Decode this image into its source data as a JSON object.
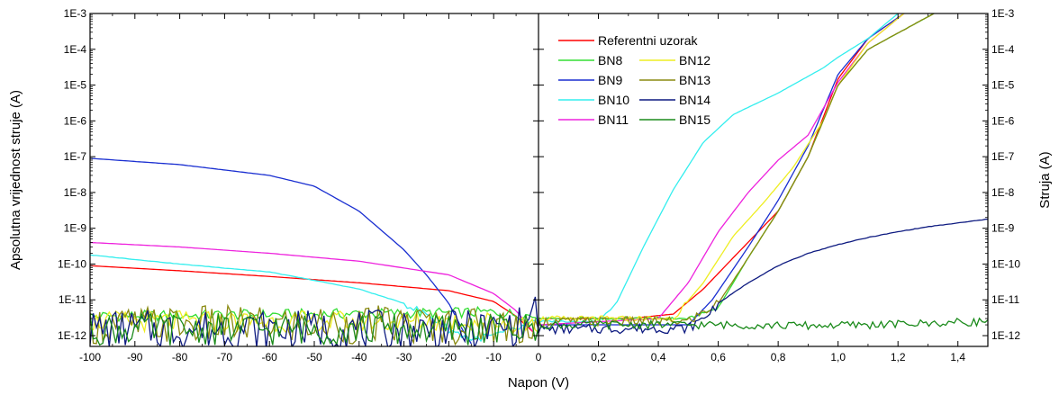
{
  "chart_data": {
    "type": "line",
    "ylabel_left": "Apsolutna vrijednost struje (A)",
    "ylabel_right": "Struja (A)",
    "xlabel": "Napon (V)",
    "y_scale": "log",
    "ylim": [
      5e-13,
      0.001
    ],
    "y_ticks": [
      "1E-12",
      "1E-11",
      "1E-10",
      "1E-9",
      "1E-8",
      "1E-7",
      "1E-6",
      "1E-5",
      "1E-4",
      "1E-3"
    ],
    "left_panel": {
      "xlim": [
        -100,
        0
      ],
      "x_ticks": [
        "-100",
        "-90",
        "-80",
        "-70",
        "-60",
        "-50",
        "-40",
        "-30",
        "-20",
        "-10",
        "0"
      ]
    },
    "right_panel": {
      "xlim": [
        0,
        1.5
      ],
      "x_ticks": [
        "0",
        "0,2",
        "0,4",
        "0,6",
        "0,8",
        "1,0",
        "1,2",
        "1,4"
      ]
    },
    "legend_position": "top-left of right panel",
    "series": [
      {
        "name": "Referentni uzorak",
        "color": "#ff0000",
        "left": [
          [
            -100,
            9e-11
          ],
          [
            -80,
            6.5e-11
          ],
          [
            -60,
            4.5e-11
          ],
          [
            -40,
            3e-11
          ],
          [
            -20,
            1.8e-11
          ],
          [
            -10,
            9e-12
          ],
          [
            -5,
            3.5e-12
          ],
          [
            -1,
            1.2e-12
          ]
        ],
        "right": [
          [
            0,
            3e-12
          ],
          [
            0.3,
            3e-12
          ],
          [
            0.45,
            4e-12
          ],
          [
            0.55,
            2e-11
          ],
          [
            0.65,
            1.5e-10
          ],
          [
            0.8,
            3e-09
          ],
          [
            0.9,
            1e-07
          ],
          [
            1.0,
            1.5e-05
          ],
          [
            1.1,
            0.0002
          ],
          [
            1.22,
            0.001
          ]
        ]
      },
      {
        "name": "BN8",
        "color": "#33dd33",
        "noise": 0.15,
        "left": [
          [
            -100,
            3.5e-12
          ],
          [
            -50,
            4e-12
          ],
          [
            -10,
            4.5e-12
          ],
          [
            0,
            3.5e-12
          ]
        ],
        "right": [
          [
            0,
            3e-12
          ],
          [
            0.5,
            3e-12
          ],
          [
            0.6,
            6e-12
          ],
          [
            0.7,
            1.5e-10
          ],
          [
            0.8,
            3e-09
          ],
          [
            0.9,
            1e-07
          ],
          [
            1.0,
            1e-05
          ],
          [
            1.1,
            0.0001
          ],
          [
            1.32,
            0.001
          ]
        ]
      },
      {
        "name": "BN9",
        "color": "#1a2fd1",
        "left": [
          [
            -100,
            9e-08
          ],
          [
            -80,
            6e-08
          ],
          [
            -60,
            3e-08
          ],
          [
            -50,
            1.5e-08
          ],
          [
            -40,
            3e-09
          ],
          [
            -30,
            2.5e-10
          ],
          [
            -25,
            5e-11
          ],
          [
            -20,
            8e-12
          ],
          [
            -17,
            1.5e-12
          ],
          [
            -15,
            6e-13
          ]
        ],
        "right": [
          [
            0,
            2e-12
          ],
          [
            0.5,
            2e-12
          ],
          [
            0.58,
            1e-11
          ],
          [
            0.7,
            3e-10
          ],
          [
            0.8,
            6e-09
          ],
          [
            0.9,
            2e-07
          ],
          [
            1.0,
            2e-05
          ],
          [
            1.1,
            0.0002
          ],
          [
            1.22,
            0.001
          ]
        ]
      },
      {
        "name": "BN10",
        "color": "#33eeee",
        "noise": 0.1,
        "left": [
          [
            -100,
            1.8e-10
          ],
          [
            -80,
            1e-10
          ],
          [
            -60,
            6e-11
          ],
          [
            -50,
            3.5e-11
          ],
          [
            -40,
            2e-11
          ],
          [
            -30,
            8e-12
          ],
          [
            -25,
            4e-12
          ],
          [
            -20,
            1.5e-12
          ],
          [
            -15,
            8e-13
          ],
          [
            -10,
            1e-12
          ],
          [
            -5,
            1.5e-12
          ],
          [
            0,
            2.5e-12
          ]
        ],
        "right": [
          [
            0,
            2.5e-12
          ],
          [
            0.2,
            2.5e-12
          ],
          [
            0.26,
            8e-12
          ],
          [
            0.35,
            3e-10
          ],
          [
            0.45,
            1.2e-08
          ],
          [
            0.55,
            2.5e-07
          ],
          [
            0.65,
            1.5e-06
          ],
          [
            0.8,
            6e-06
          ],
          [
            0.95,
            3e-05
          ],
          [
            1.0,
            6e-05
          ],
          [
            1.1,
            0.0002
          ],
          [
            1.2,
            0.001
          ]
        ]
      },
      {
        "name": "BN11",
        "color": "#ee22dd",
        "left": [
          [
            -100,
            4e-10
          ],
          [
            -80,
            3e-10
          ],
          [
            -60,
            2e-10
          ],
          [
            -40,
            1.2e-10
          ],
          [
            -20,
            5e-11
          ],
          [
            -10,
            1.5e-11
          ],
          [
            -5,
            5e-12
          ],
          [
            -1,
            1.2e-12
          ]
        ],
        "right": [
          [
            0,
            2e-12
          ],
          [
            0.4,
            3e-12
          ],
          [
            0.5,
            3e-11
          ],
          [
            0.6,
            8e-10
          ],
          [
            0.7,
            1e-08
          ],
          [
            0.8,
            8e-08
          ],
          [
            0.9,
            4e-07
          ],
          [
            1.0,
            1.2e-05
          ],
          [
            1.1,
            0.00015
          ],
          [
            1.22,
            0.001
          ]
        ]
      },
      {
        "name": "BN12",
        "color": "#eeee22",
        "noise": 0.3,
        "left": [
          [
            -100,
            2.5e-12
          ],
          [
            -60,
            2.5e-12
          ],
          [
            -30,
            2.5e-12
          ],
          [
            -10,
            2.5e-12
          ],
          [
            0,
            2e-12
          ]
        ],
        "right": [
          [
            0,
            3e-12
          ],
          [
            0.45,
            3e-12
          ],
          [
            0.55,
            3e-11
          ],
          [
            0.65,
            6e-10
          ],
          [
            0.75,
            5e-09
          ],
          [
            0.85,
            5e-08
          ],
          [
            0.95,
            1e-06
          ],
          [
            1.0,
            1e-05
          ],
          [
            1.1,
            0.00015
          ],
          [
            1.22,
            0.001
          ]
        ]
      },
      {
        "name": "BN13",
        "color": "#8a8a11",
        "noise": 0.55,
        "left": [
          [
            -100,
            2e-12
          ],
          [
            -50,
            2e-12
          ],
          [
            -10,
            2e-12
          ],
          [
            0,
            2e-12
          ]
        ],
        "right": [
          [
            0,
            2.5e-12
          ],
          [
            0.5,
            2.5e-12
          ],
          [
            0.6,
            8e-12
          ],
          [
            0.7,
            1.5e-10
          ],
          [
            0.8,
            3e-09
          ],
          [
            0.9,
            1e-07
          ],
          [
            1.0,
            1e-05
          ],
          [
            1.1,
            0.0001
          ],
          [
            1.32,
            0.001
          ]
        ]
      },
      {
        "name": "BN14",
        "color": "#0d1a80",
        "noise": 0.55,
        "left": [
          [
            -100,
            1.5e-12
          ],
          [
            -50,
            1.5e-12
          ],
          [
            -10,
            1.5e-12
          ],
          [
            -2,
            2e-12
          ],
          [
            -1,
            2e-11
          ],
          [
            0,
            3e-12
          ]
        ],
        "right": [
          [
            0,
            1.5e-12
          ],
          [
            0.5,
            1.6e-12
          ],
          [
            0.55,
            3e-12
          ],
          [
            0.6,
            8e-12
          ],
          [
            0.7,
            3e-11
          ],
          [
            0.8,
            9e-11
          ],
          [
            0.9,
            2e-10
          ],
          [
            1.0,
            3.5e-10
          ],
          [
            1.1,
            5.5e-10
          ],
          [
            1.2,
            8e-10
          ],
          [
            1.3,
            1.1e-09
          ],
          [
            1.4,
            1.4e-09
          ],
          [
            1.5,
            1.8e-09
          ]
        ]
      },
      {
        "name": "BN15",
        "color": "#1a8a1a",
        "noise": 0.45,
        "left": [
          [
            -100,
            1.5e-12
          ],
          [
            -50,
            1.5e-12
          ],
          [
            -10,
            1.5e-12
          ],
          [
            0,
            1.5e-12
          ]
        ],
        "right": [
          [
            0,
            2e-12
          ],
          [
            0.3,
            2e-12
          ],
          [
            0.6,
            2e-12
          ],
          [
            0.9,
            1.9e-12
          ],
          [
            1.1,
            2e-12
          ],
          [
            1.3,
            2.2e-12
          ],
          [
            1.5,
            2.5e-12
          ]
        ]
      }
    ]
  }
}
